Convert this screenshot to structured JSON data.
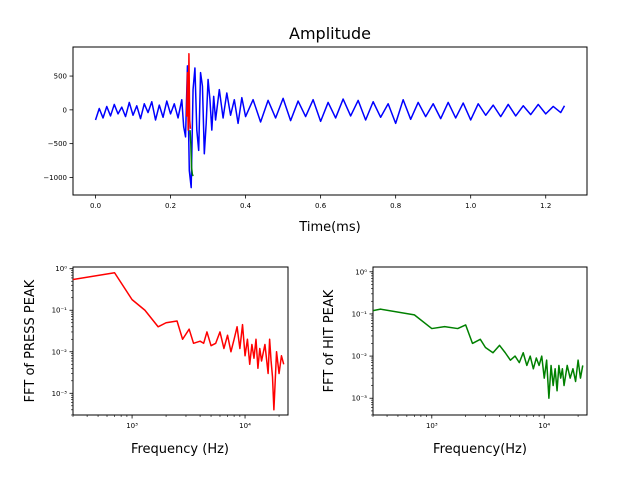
{
  "chart_data": [
    {
      "type": "line",
      "title": "Amplitude",
      "xlabel": "Time(ms)",
      "ylabel": "",
      "xlim": [
        -0.06,
        1.31
      ],
      "ylim": [
        -1260,
        930
      ],
      "xticks": [
        0.0,
        0.2,
        0.4,
        0.6,
        0.8,
        1.0,
        1.2
      ],
      "xtick_labels": [
        "0.0",
        "0.2",
        "0.4",
        "0.6",
        "0.8",
        "1.0",
        "1.2"
      ],
      "yticks": [
        500,
        0,
        -500,
        -1000
      ],
      "ytick_labels": [
        "500",
        "0",
        "−500",
        "−1000"
      ],
      "grid": false,
      "series": [
        {
          "color": "#0000ff",
          "x": [
            0.0,
            0.01,
            0.02,
            0.03,
            0.04,
            0.05,
            0.06,
            0.07,
            0.08,
            0.09,
            0.1,
            0.11,
            0.12,
            0.13,
            0.14,
            0.15,
            0.16,
            0.17,
            0.18,
            0.19,
            0.2,
            0.21,
            0.22,
            0.23,
            0.235,
            0.24,
            0.245,
            0.25,
            0.255,
            0.26,
            0.265,
            0.27,
            0.275,
            0.28,
            0.285,
            0.29,
            0.295,
            0.3,
            0.305,
            0.31,
            0.315,
            0.32,
            0.33,
            0.34,
            0.35,
            0.36,
            0.37,
            0.38,
            0.39,
            0.4,
            0.42,
            0.44,
            0.46,
            0.48,
            0.5,
            0.52,
            0.54,
            0.56,
            0.58,
            0.6,
            0.62,
            0.64,
            0.66,
            0.68,
            0.7,
            0.72,
            0.74,
            0.76,
            0.78,
            0.8,
            0.82,
            0.84,
            0.86,
            0.88,
            0.9,
            0.92,
            0.94,
            0.96,
            0.98,
            1.0,
            1.02,
            1.04,
            1.06,
            1.08,
            1.1,
            1.12,
            1.14,
            1.16,
            1.18,
            1.2,
            1.22,
            1.24,
            1.25
          ],
          "y": [
            -150,
            20,
            -120,
            50,
            -90,
            80,
            -60,
            40,
            -100,
            110,
            -80,
            60,
            -130,
            90,
            -40,
            120,
            -150,
            70,
            -110,
            130,
            -60,
            90,
            -120,
            150,
            -250,
            -400,
            650,
            -900,
            -1150,
            300,
            620,
            -300,
            -600,
            550,
            350,
            -650,
            -200,
            450,
            150,
            -300,
            200,
            -150,
            300,
            -120,
            250,
            -80,
            150,
            -200,
            180,
            -100,
            150,
            -180,
            140,
            -120,
            170,
            -160,
            130,
            -100,
            150,
            -170,
            110,
            -120,
            160,
            -90,
            140,
            -150,
            120,
            -110,
            90,
            -200,
            150,
            -140,
            110,
            -100,
            90,
            -130,
            110,
            -120,
            100,
            -150,
            90,
            -80,
            70,
            -100,
            80,
            -90,
            60,
            -70,
            80,
            -60,
            50,
            -40,
            60
          ]
        },
        {
          "color": "#ff0000",
          "x": [
            0.243,
            0.245,
            0.247,
            0.249,
            0.251,
            0.253
          ],
          "y": [
            -100,
            550,
            -300,
            830,
            -150,
            -280
          ]
        },
        {
          "color": "#008000",
          "x": [
            0.252,
            0.254,
            0.256,
            0.258,
            0.26
          ],
          "y": [
            -300,
            -500,
            -850,
            -950,
            -980
          ]
        }
      ]
    },
    {
      "type": "line",
      "title": "",
      "xlabel": "Frequency (Hz)",
      "ylabel": "FFT of PRESS PEAK",
      "xscale": "log",
      "yscale": "log",
      "xlim": [
        300,
        24000
      ],
      "ylim": [
        0.0003,
        1.1
      ],
      "xticks": [
        1000,
        10000
      ],
      "xtick_labels": [
        "10³",
        "10⁴"
      ],
      "yticks": [
        1,
        0.1,
        0.01,
        0.001
      ],
      "ytick_labels": [
        "10⁰",
        "10⁻¹",
        "10⁻²",
        "10⁻³"
      ],
      "grid": false,
      "series": [
        {
          "color": "#ff0000",
          "x": [
            300,
            700,
            1000,
            1300,
            1700,
            2000,
            2500,
            2800,
            3200,
            3500,
            4000,
            4300,
            4600,
            5000,
            5500,
            6000,
            6500,
            7000,
            7500,
            8000,
            8500,
            9000,
            9500,
            10000,
            10500,
            11000,
            11500,
            12000,
            12500,
            13000,
            13500,
            14000,
            15000,
            16000,
            16500,
            17000,
            17500,
            18000,
            19000,
            20000,
            21000,
            22000
          ],
          "x_note": "",
          "y": [
            0.55,
            0.8,
            0.18,
            0.1,
            0.04,
            0.05,
            0.055,
            0.02,
            0.035,
            0.016,
            0.018,
            0.016,
            0.03,
            0.014,
            0.016,
            0.03,
            0.012,
            0.025,
            0.01,
            0.02,
            0.04,
            0.012,
            0.045,
            0.008,
            0.02,
            0.005,
            0.015,
            0.007,
            0.02,
            0.004,
            0.012,
            0.006,
            0.015,
            0.003,
            0.02,
            0.006,
            0.0025,
            0.0004,
            0.01,
            0.003,
            0.008,
            0.005
          ]
        }
      ]
    },
    {
      "type": "line",
      "title": "",
      "xlabel": "Frequency(Hz)",
      "ylabel": "FFT of HIT PEAK",
      "xscale": "log",
      "yscale": "log",
      "xlim": [
        300,
        24000
      ],
      "ylim": [
        0.0004,
        1.3
      ],
      "xticks": [
        1000,
        10000
      ],
      "xtick_labels": [
        "10³",
        "10⁴"
      ],
      "yticks": [
        1,
        0.1,
        0.01,
        0.001
      ],
      "ytick_labels": [
        "10⁰",
        "10⁻¹",
        "10⁻²",
        "10⁻³"
      ],
      "grid": false,
      "series": [
        {
          "color": "#008000",
          "x": [
            300,
            350,
            700,
            1000,
            1300,
            1700,
            2000,
            2300,
            2700,
            3000,
            3500,
            4000,
            4500,
            5000,
            5500,
            6000,
            6500,
            7000,
            7500,
            8000,
            8500,
            9000,
            9500,
            10000,
            10500,
            11000,
            11500,
            12000,
            12500,
            13000,
            13500,
            14000,
            14500,
            15000,
            16000,
            17000,
            18000,
            19000,
            20000,
            21000,
            22000
          ],
          "y": [
            0.12,
            0.13,
            0.095,
            0.045,
            0.05,
            0.045,
            0.055,
            0.02,
            0.025,
            0.016,
            0.012,
            0.018,
            0.012,
            0.008,
            0.01,
            0.007,
            0.012,
            0.006,
            0.01,
            0.005,
            0.009,
            0.006,
            0.01,
            0.003,
            0.008,
            0.001,
            0.006,
            0.002,
            0.005,
            0.0015,
            0.006,
            0.003,
            0.005,
            0.002,
            0.006,
            0.003,
            0.005,
            0.0025,
            0.008,
            0.003,
            0.006
          ]
        }
      ]
    }
  ]
}
